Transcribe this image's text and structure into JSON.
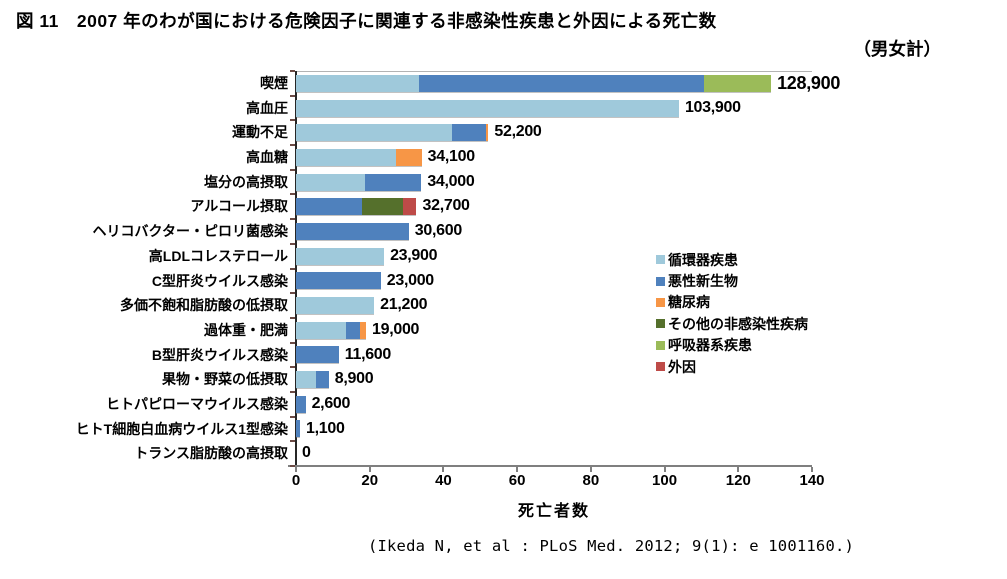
{
  "title": {
    "line1": "図 11　2007 年のわが国における危険因子に関連する非感染性疾患と外因による死亡数",
    "line2": "（男女計）"
  },
  "citation": "(Ikeda N, et al : PLoS Med. 2012; 9(1): e 1001160.)",
  "chart_data": {
    "type": "bar",
    "orientation": "horizontal",
    "title": "2007年のわが国における危険因子に関連する非感染性疾患と外因による死亡数（男女計）",
    "xlabel": "死亡者数",
    "value_unit": "thousands of deaths",
    "xlim": [
      0,
      140
    ],
    "xticks": [
      0,
      20,
      40,
      60,
      80,
      100,
      120,
      140
    ],
    "grid": false,
    "legend_position": "right-middle",
    "legend": [
      {
        "name": "循環器疾患",
        "color": "#9FC9DB"
      },
      {
        "name": "悪性新生物",
        "color": "#4F81BD"
      },
      {
        "name": "糖尿病",
        "color": "#F79646"
      },
      {
        "name": "その他の非感染性疾病",
        "color": "#55702C"
      },
      {
        "name": "呼吸器系疾患",
        "color": "#9BBB59"
      },
      {
        "name": "外因",
        "color": "#BE4B48"
      }
    ],
    "rows": [
      {
        "label": "喫煙",
        "total": 128900,
        "total_label": "128,900",
        "segments": [
          [
            "循環器疾患",
            33.4
          ],
          [
            "悪性新生物",
            77.4
          ],
          [
            "呼吸器系疾患",
            18.1
          ]
        ]
      },
      {
        "label": "高血圧",
        "total": 103900,
        "total_label": "103,900",
        "segments": [
          [
            "循環器疾患",
            103.9
          ]
        ]
      },
      {
        "label": "運動不足",
        "total": 52200,
        "total_label": "52,200",
        "segments": [
          [
            "循環器疾患",
            42.2
          ],
          [
            "悪性新生物",
            9.3
          ],
          [
            "糖尿病",
            0.7
          ]
        ]
      },
      {
        "label": "高血糖",
        "total": 34100,
        "total_label": "34,100",
        "segments": [
          [
            "循環器疾患",
            27.2
          ],
          [
            "糖尿病",
            6.9
          ]
        ]
      },
      {
        "label": "塩分の高摂取",
        "total": 34000,
        "total_label": "34,000",
        "segments": [
          [
            "循環器疾患",
            18.6
          ],
          [
            "悪性新生物",
            15.4
          ]
        ]
      },
      {
        "label": "アルコール摂取",
        "total": 32700,
        "total_label": "32,700",
        "segments": [
          [
            "悪性新生物",
            18.0
          ],
          [
            "その他の非感染性疾病",
            11.0
          ],
          [
            "外因",
            3.7
          ]
        ]
      },
      {
        "label": "ヘリコバクター・ピロリ菌感染",
        "total": 30600,
        "total_label": "30,600",
        "segments": [
          [
            "悪性新生物",
            30.6
          ]
        ]
      },
      {
        "label": "高LDLコレステロール",
        "total": 23900,
        "total_label": "23,900",
        "segments": [
          [
            "循環器疾患",
            23.9
          ]
        ]
      },
      {
        "label": "C型肝炎ウイルス感染",
        "total": 23000,
        "total_label": "23,000",
        "segments": [
          [
            "悪性新生物",
            23.0
          ]
        ]
      },
      {
        "label": "多価不飽和脂肪酸の低摂取",
        "total": 21200,
        "total_label": "21,200",
        "segments": [
          [
            "循環器疾患",
            21.2
          ]
        ]
      },
      {
        "label": "過体重・肥満",
        "total": 19000,
        "total_label": "19,000",
        "segments": [
          [
            "循環器疾患",
            13.5
          ],
          [
            "悪性新生物",
            4.0
          ],
          [
            "糖尿病",
            1.5
          ]
        ]
      },
      {
        "label": "B型肝炎ウイルス感染",
        "total": 11600,
        "total_label": "11,600",
        "segments": [
          [
            "悪性新生物",
            11.6
          ]
        ]
      },
      {
        "label": "果物・野菜の低摂取",
        "total": 8900,
        "total_label": "8,900",
        "segments": [
          [
            "循環器疾患",
            5.4
          ],
          [
            "悪性新生物",
            3.5
          ]
        ]
      },
      {
        "label": "ヒトパピローマウイルス感染",
        "total": 2600,
        "total_label": "2,600",
        "segments": [
          [
            "悪性新生物",
            2.6
          ]
        ]
      },
      {
        "label": "ヒトT細胞白血病ウイルス1型感染",
        "total": 1100,
        "total_label": "1,100",
        "segments": [
          [
            "悪性新生物",
            1.1
          ]
        ]
      },
      {
        "label": "トランス脂肪酸の高摂取",
        "total": 0,
        "total_label": "0",
        "segments": []
      }
    ]
  }
}
